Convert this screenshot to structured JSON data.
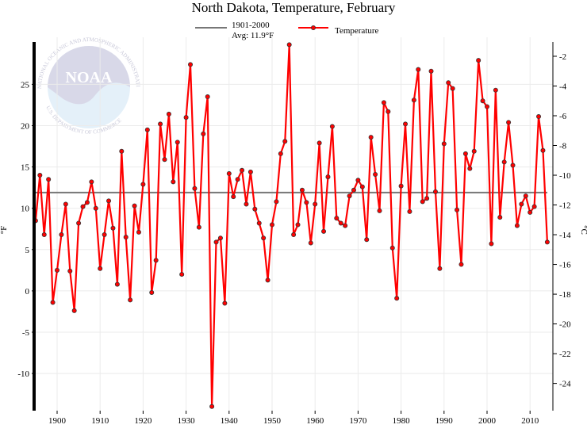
{
  "chart_data": {
    "type": "line",
    "title": "North Dakota, Temperature, February",
    "ylabel": "°F",
    "ylabel_right": "°C",
    "xlim": [
      1895,
      2015
    ],
    "ylim": [
      -14.5,
      30.7
    ],
    "x_ticks": [
      1900,
      1910,
      1920,
      1930,
      1940,
      1950,
      1960,
      1970,
      1980,
      1990,
      2000,
      2010
    ],
    "y_ticks": [
      -10,
      -5,
      0,
      5,
      10,
      15,
      20,
      25
    ],
    "y_ticks_right": [
      -24,
      -22,
      -20,
      -18,
      -16,
      -14,
      -12,
      -10,
      -8,
      -6,
      -4,
      -2
    ],
    "grid": true,
    "legend_position": "top-center",
    "average": {
      "label_line1": "1901-2000",
      "label_line2": "Avg: 11.9°F",
      "value": 11.9,
      "color": "#777777"
    },
    "series": [
      {
        "name": "Temperature",
        "color": "#ff0000",
        "x": [
          1895,
          1896,
          1897,
          1898,
          1899,
          1900,
          1901,
          1902,
          1903,
          1904,
          1905,
          1906,
          1907,
          1908,
          1909,
          1910,
          1911,
          1912,
          1913,
          1914,
          1915,
          1916,
          1917,
          1918,
          1919,
          1920,
          1921,
          1922,
          1923,
          1924,
          1925,
          1926,
          1927,
          1928,
          1929,
          1930,
          1931,
          1932,
          1933,
          1934,
          1935,
          1936,
          1937,
          1938,
          1939,
          1940,
          1941,
          1942,
          1943,
          1944,
          1945,
          1946,
          1947,
          1948,
          1949,
          1950,
          1951,
          1952,
          1953,
          1954,
          1955,
          1956,
          1957,
          1958,
          1959,
          1960,
          1961,
          1962,
          1963,
          1964,
          1965,
          1966,
          1967,
          1968,
          1969,
          1970,
          1971,
          1972,
          1973,
          1974,
          1975,
          1976,
          1977,
          1978,
          1979,
          1980,
          1981,
          1982,
          1983,
          1984,
          1985,
          1986,
          1987,
          1988,
          1989,
          1990,
          1991,
          1992,
          1993,
          1994,
          1995,
          1996,
          1997,
          1998,
          1999,
          2000,
          2001,
          2002,
          2003,
          2004,
          2005,
          2006,
          2007,
          2008,
          2009,
          2010,
          2011,
          2012,
          2013,
          2014
        ],
        "values": [
          8.5,
          14.0,
          6.8,
          13.5,
          -1.4,
          2.5,
          6.8,
          10.5,
          2.4,
          -2.4,
          8.2,
          10.2,
          10.7,
          13.2,
          10.0,
          2.7,
          6.8,
          10.9,
          7.6,
          0.8,
          16.9,
          6.5,
          -1.1,
          10.3,
          7.1,
          12.9,
          19.5,
          -0.2,
          3.7,
          20.2,
          15.9,
          21.4,
          13.2,
          18.0,
          2.0,
          21.0,
          27.4,
          12.4,
          7.7,
          19.0,
          23.5,
          -14.0,
          5.9,
          6.4,
          -1.5,
          14.2,
          11.4,
          13.5,
          14.6,
          10.5,
          14.4,
          9.9,
          8.2,
          6.4,
          1.3,
          8.0,
          10.8,
          16.6,
          18.1,
          29.8,
          6.8,
          8.0,
          12.2,
          10.7,
          5.8,
          10.5,
          17.9,
          7.2,
          13.8,
          19.9,
          8.8,
          8.2,
          7.9,
          11.5,
          12.2,
          13.4,
          12.6,
          6.2,
          18.6,
          14.1,
          9.7,
          22.8,
          21.7,
          5.2,
          -0.9,
          12.7,
          20.2,
          9.6,
          23.1,
          26.8,
          10.8,
          11.2,
          26.6,
          12.0,
          2.7,
          17.8,
          25.2,
          24.5,
          9.8,
          3.2,
          16.6,
          14.8,
          16.9,
          27.9,
          23.0,
          22.3,
          5.7,
          24.3,
          8.9,
          15.6,
          20.4,
          15.2,
          7.9,
          10.5,
          11.5,
          9.5,
          10.2,
          21.1,
          17.0,
          5.9
        ]
      }
    ]
  },
  "watermark": {
    "logo_text": "NOAA",
    "ring_text_top": "NATIONAL OCEANIC AND ATMOSPHERIC ADMINISTRATION",
    "ring_text_bottom": "U.S. DEPARTMENT OF COMMERCE"
  }
}
